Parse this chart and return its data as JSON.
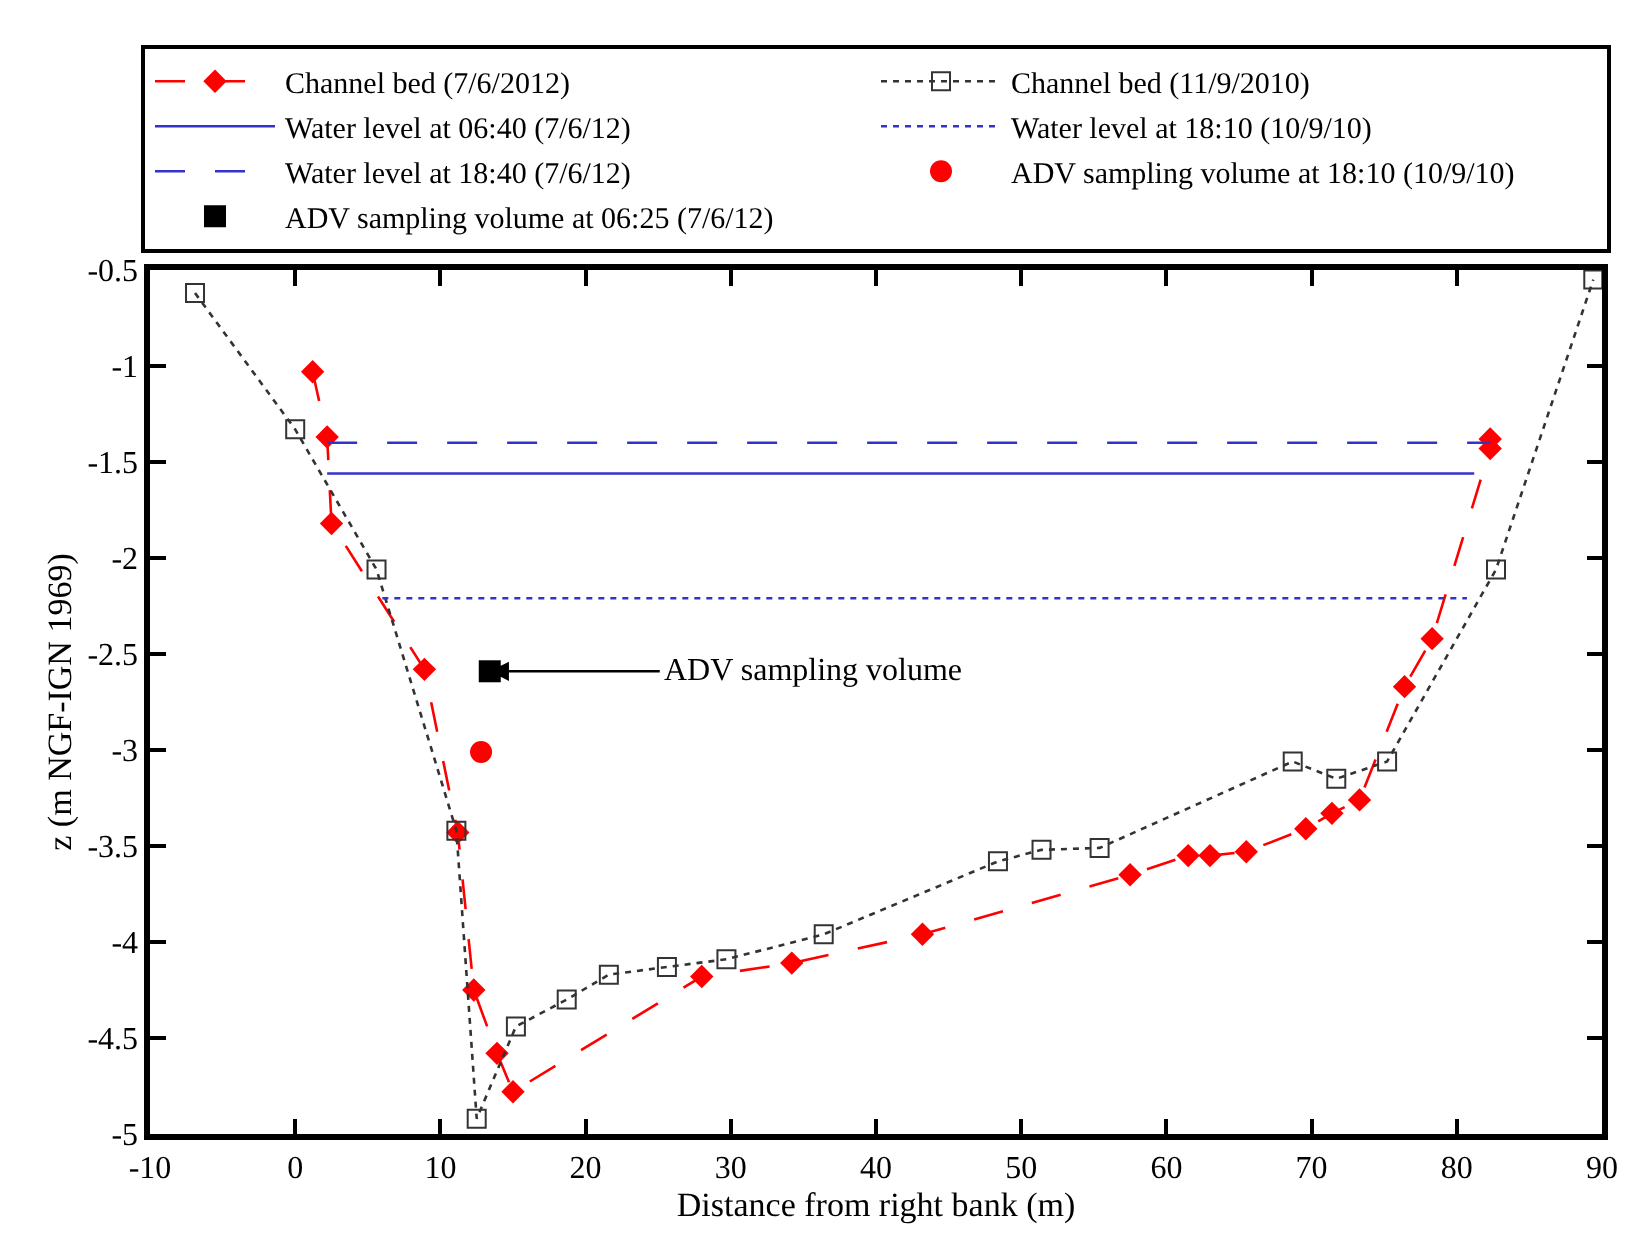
{
  "chart_data": {
    "type": "line",
    "xlabel": "Distance from right bank (m)",
    "ylabel": "z (m NGF-IGN 1969)",
    "xlim": [
      -10,
      90
    ],
    "xticks": [
      -10,
      0,
      10,
      20,
      30,
      40,
      50,
      60,
      70,
      80,
      90
    ],
    "ylim": [
      -5,
      -0.5
    ],
    "yticks": [
      -5,
      -4.5,
      -4,
      -3.5,
      -3,
      -2.5,
      -2,
      -1.5,
      -1,
      -0.5
    ],
    "legend": "top",
    "series": [
      {
        "name": "Channel bed (7/6/2012)",
        "color": "#ff0000",
        "marker": "diamond",
        "line_style": "dashed",
        "x": [
          1.2,
          2.2,
          2.5,
          8.9,
          11.2,
          12.3,
          13.9,
          15.0,
          28.0,
          34.2,
          43.2,
          57.5,
          61.5,
          63.0,
          65.5,
          69.6,
          71.4,
          73.3,
          76.4,
          78.3,
          82.3,
          82.3
        ],
        "values": [
          -1.03,
          -1.37,
          -1.82,
          -2.58,
          -3.43,
          -4.25,
          -4.58,
          -4.78,
          -4.18,
          -4.11,
          -3.96,
          -3.65,
          -3.55,
          -3.55,
          -3.53,
          -3.41,
          -3.33,
          -3.26,
          -2.67,
          -2.42,
          -1.43,
          -1.38
        ]
      },
      {
        "name": "Channel bed (11/9/2010)",
        "color": "#333333",
        "marker": "square",
        "line_style": "dotted",
        "x": [
          -6.9,
          0.0,
          5.6,
          11.1,
          12.5,
          15.2,
          18.7,
          21.6,
          25.6,
          29.7,
          36.4,
          48.4,
          51.4,
          55.4,
          68.7,
          71.7,
          75.2,
          82.7,
          89.4
        ],
        "values": [
          -0.62,
          -1.33,
          -2.06,
          -3.42,
          -4.92,
          -4.44,
          -4.3,
          -4.17,
          -4.13,
          -4.09,
          -3.96,
          -3.58,
          -3.52,
          -3.51,
          -3.06,
          -3.15,
          -3.06,
          -2.06,
          -0.55
        ]
      },
      {
        "name": "Water level at 06:40 (7/6/12)",
        "color": "#3333cc",
        "marker": "none",
        "line_style": "solid",
        "x": [
          2.2,
          81.2
        ],
        "values": [
          -1.56,
          -1.56
        ]
      },
      {
        "name": "Water level at 18:10 (10/9/10)",
        "color": "#3333cc",
        "marker": "none",
        "line_style": "dotted",
        "x": [
          6.0,
          80.7
        ],
        "values": [
          -2.21,
          -2.21
        ]
      },
      {
        "name": "Water level at 18:40 (7/6/12)",
        "color": "#3333cc",
        "marker": "none",
        "line_style": "dashed",
        "x": [
          2.2,
          82.3
        ],
        "values": [
          -1.4,
          -1.4
        ]
      },
      {
        "name": "ADV sampling volume at 18:10 (10/9/10)",
        "type": "scatter",
        "color": "#ff0000",
        "marker": "circle",
        "x": [
          12.8
        ],
        "values": [
          -3.01
        ]
      },
      {
        "name": "ADV sampling volume at 06:25 (7/6/12)",
        "type": "scatter",
        "color": "#000000",
        "marker": "square",
        "x": [
          13.4
        ],
        "values": [
          -2.59
        ]
      }
    ],
    "annotations": [
      {
        "text": "ADV sampling volume",
        "x": 13.4,
        "y": -2.59
      }
    ]
  }
}
